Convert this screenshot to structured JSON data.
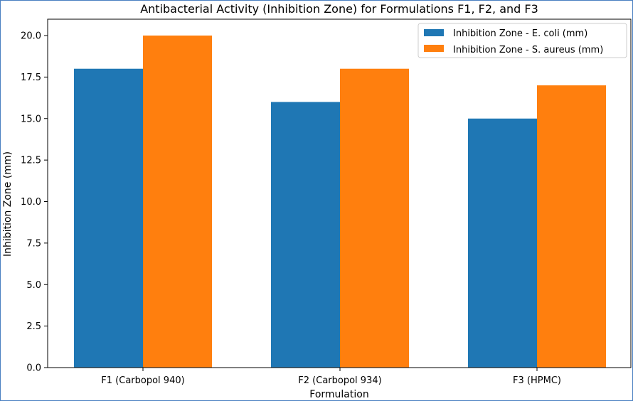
{
  "chart_data": {
    "type": "bar",
    "title": "Antibacterial Activity (Inhibition Zone) for Formulations F1, F2, and F3",
    "xlabel": "Formulation",
    "ylabel": "Inhibition Zone (mm)",
    "categories": [
      "F1 (Carbopol 940)",
      "F2 (Carbopol 934)",
      "F3 (HPMC)"
    ],
    "series": [
      {
        "name": "Inhibition Zone - E. coli (mm)",
        "values": [
          18,
          16,
          15
        ],
        "color": "#1f77b4"
      },
      {
        "name": "Inhibition Zone - S. aureus (mm)",
        "values": [
          20,
          18,
          17
        ],
        "color": "#ff7f0e"
      }
    ],
    "ylim": [
      0,
      21
    ],
    "yticks": [
      "0.0",
      "2.5",
      "5.0",
      "7.5",
      "10.0",
      "12.5",
      "15.0",
      "17.5",
      "20.0"
    ],
    "grid": false,
    "legend_position": "top-right"
  }
}
